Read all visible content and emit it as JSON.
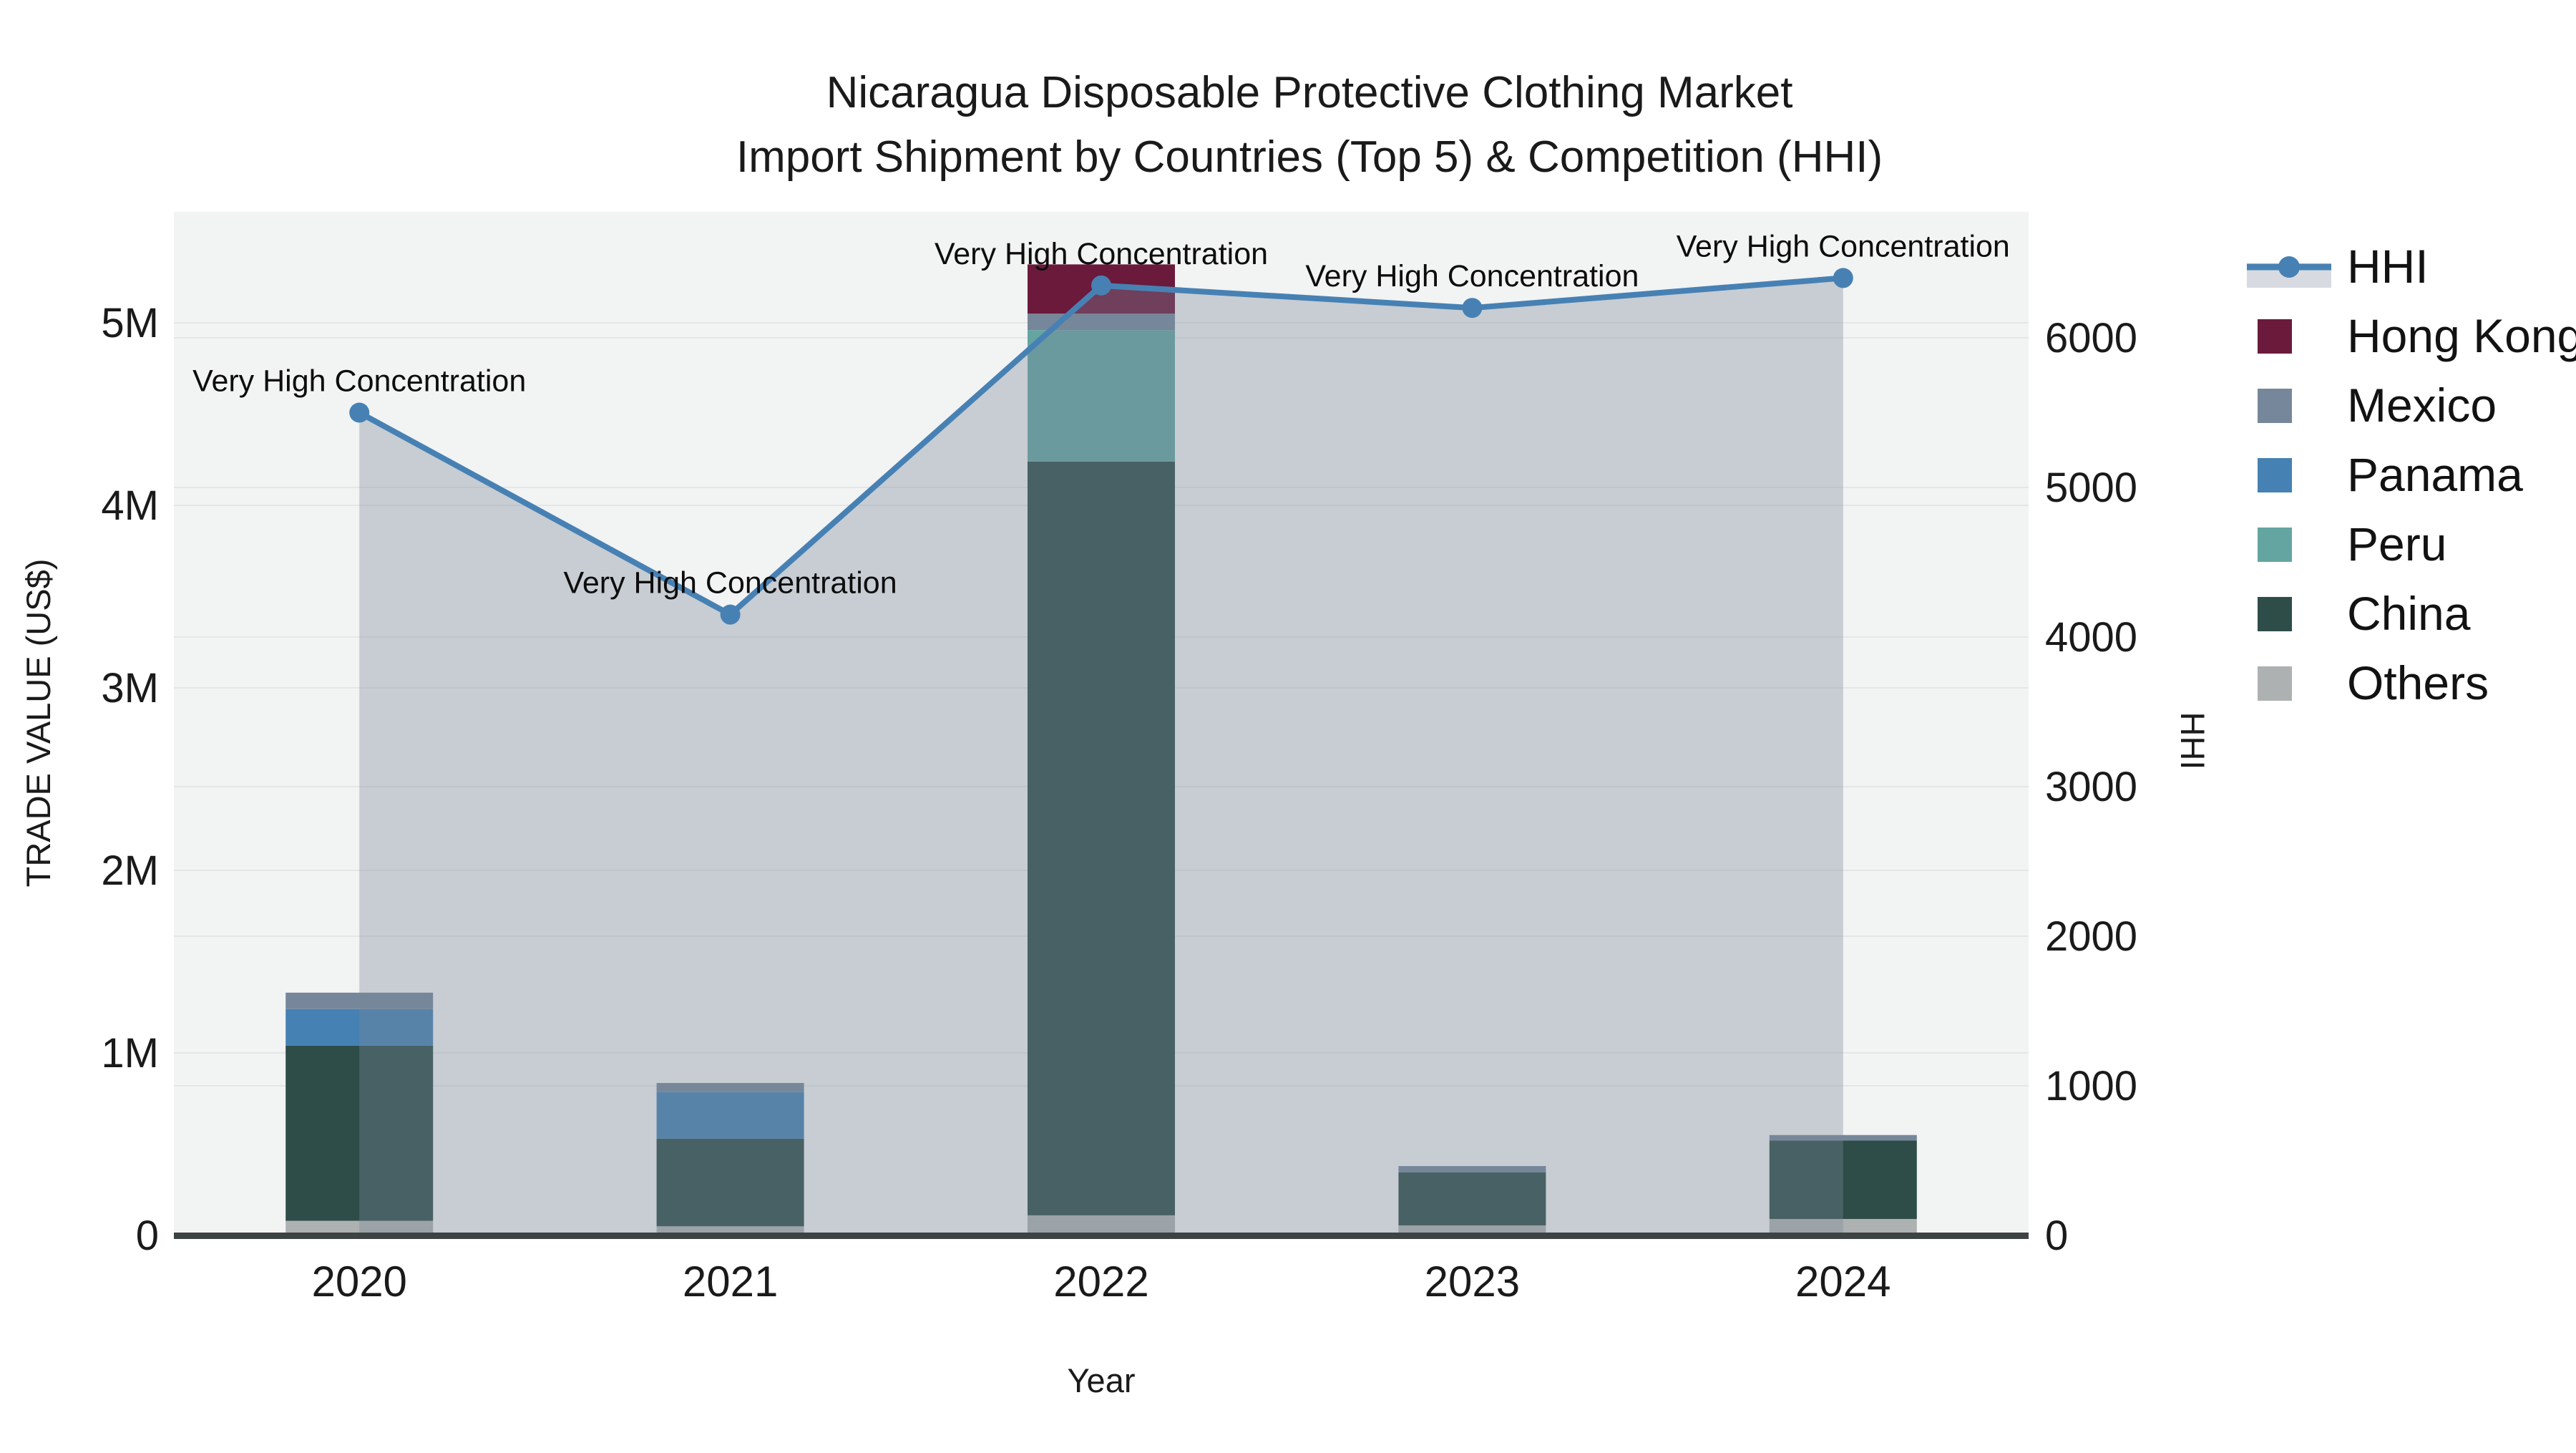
{
  "title": {
    "line1": "Nicaragua Disposable Protective Clothing Market",
    "line2": "Import Shipment by Countries (Top 5) & Competition (HHI)"
  },
  "axes": {
    "x": {
      "label": "Year",
      "ticks": [
        "2020",
        "2021",
        "2022",
        "2023",
        "2024"
      ]
    },
    "y_left": {
      "label": "TRADE VALUE (US$)",
      "ticks": [
        "0",
        "1M",
        "2M",
        "3M",
        "4M",
        "5M"
      ]
    },
    "y_right": {
      "label": "HHI",
      "ticks": [
        "0",
        "1000",
        "2000",
        "3000",
        "4000",
        "5000",
        "6000"
      ]
    }
  },
  "legend": {
    "items": [
      {
        "label": "HHI",
        "type": "line",
        "color": "#4781b4"
      },
      {
        "label": "Hong Kong",
        "type": "square",
        "color": "#6b1a3c"
      },
      {
        "label": "Mexico",
        "type": "square",
        "color": "#77879b"
      },
      {
        "label": "Panama",
        "type": "square",
        "color": "#4581b3"
      },
      {
        "label": "Peru",
        "type": "square",
        "color": "#64a5a1"
      },
      {
        "label": "China",
        "type": "square",
        "color": "#2e4d49"
      },
      {
        "label": "Others",
        "type": "square",
        "color": "#aeb1b1"
      }
    ]
  },
  "colors": {
    "background": "#ffffff",
    "plot_bg": "#f2f3f3",
    "grid": "#e4e6e8",
    "axis_line": "#3d4242",
    "text": "#1a1a1a",
    "hhi_line": "#4781b4",
    "area_fill": "rgba(119,136,153,0.35)",
    "legend_hhi_band": "#d7dbe1"
  },
  "chart_data": {
    "type": "bar+line",
    "value_unit": "US$ millions (left axis), HHI index (right axis)",
    "categories": [
      "2020",
      "2021",
      "2022",
      "2023",
      "2024"
    ],
    "stack_order": [
      "Others",
      "China",
      "Peru",
      "Panama",
      "Mexico",
      "Hong Kong"
    ],
    "bar_series": [
      {
        "name": "Hong Kong",
        "color": "#6b1a3c",
        "values": [
          0,
          0,
          0.27,
          0,
          0
        ]
      },
      {
        "name": "Mexico",
        "color": "#77879b",
        "values": [
          0.09,
          0.05,
          0.09,
          0.035,
          0.03
        ]
      },
      {
        "name": "Panama",
        "color": "#4581b3",
        "values": [
          0.2,
          0.255,
          0,
          0,
          0
        ]
      },
      {
        "name": "Peru",
        "color": "#64a5a1",
        "values": [
          0,
          0,
          0.72,
          0,
          0
        ]
      },
      {
        "name": "China",
        "color": "#2e4d49",
        "values": [
          0.96,
          0.48,
          4.13,
          0.29,
          0.43
        ]
      },
      {
        "name": "Others",
        "color": "#aeb1b1",
        "values": [
          0.08,
          0.05,
          0.11,
          0.055,
          0.09
        ]
      }
    ],
    "bar_totals_musd": [
      1.33,
      0.84,
      5.32,
      0.38,
      0.56
    ],
    "hhi": {
      "name": "HHI",
      "color": "#4781b4",
      "area_fill": "rgba(119,136,153,0.35)",
      "values": [
        5500,
        4150,
        6350,
        6200,
        6400
      ]
    },
    "annotations": [
      "Very High Concentration",
      "Very High Concentration",
      "Very High Concentration",
      "Very High Concentration",
      "Very High Concentration"
    ],
    "xlabel": "Year",
    "ylabel_left": "TRADE VALUE (US$)",
    "ylabel_right": "HHI",
    "ylim_left_musd": [
      0,
      5.6
    ],
    "ylim_right": [
      0,
      6840
    ],
    "grid": true,
    "legend_position": "right"
  }
}
